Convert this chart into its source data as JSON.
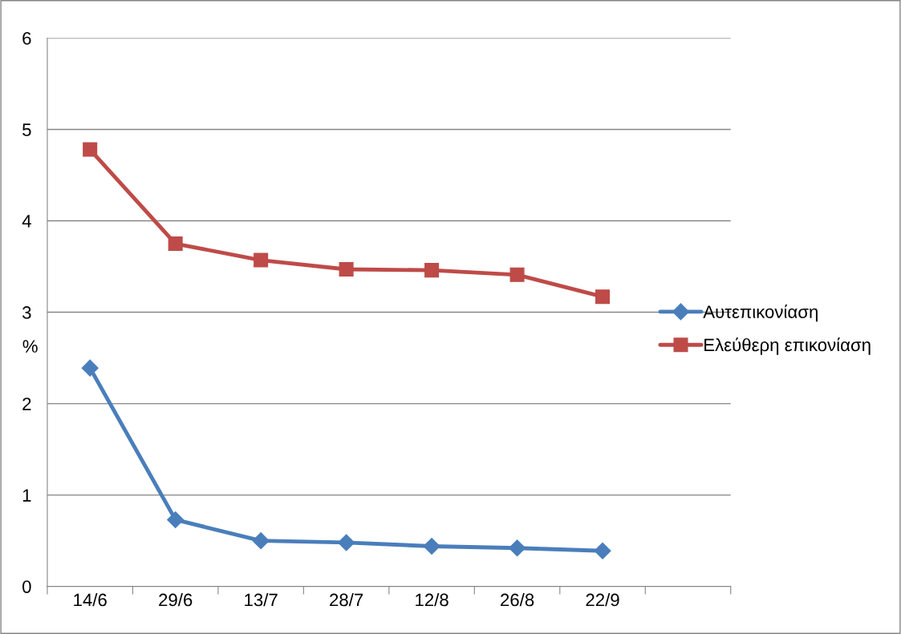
{
  "chart_data": {
    "type": "line",
    "ylabel": "%",
    "categories": [
      "14/6",
      "29/6",
      "13/7",
      "28/7",
      "12/8",
      "26/8",
      "22/9",
      null
    ],
    "series": [
      {
        "name": "Αυτεπικονίαση",
        "color": "#4a7ebb",
        "marker": "diamond",
        "values": [
          2.39,
          0.73,
          0.5,
          0.48,
          0.44,
          0.42,
          0.39,
          null
        ]
      },
      {
        "name": "Ελεύθερη επικονίαση",
        "color": "#be4b48",
        "marker": "square",
        "values": [
          4.78,
          3.75,
          3.57,
          3.47,
          3.46,
          3.41,
          3.17,
          null
        ]
      }
    ],
    "ylim": [
      0,
      6
    ],
    "yticks": [
      0,
      1,
      2,
      3,
      4,
      5,
      6
    ],
    "grid": "y",
    "legend": "right",
    "line_style": "solid"
  }
}
